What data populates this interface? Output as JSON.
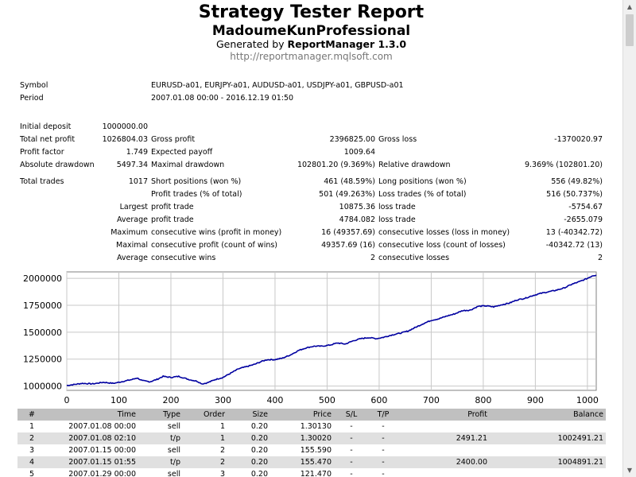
{
  "header": {
    "title": "Strategy Tester Report",
    "expert": "MadoumeKunProfessional",
    "generated_prefix": "Generated by ",
    "generator": "ReportManager 1.3.0",
    "url": "http://reportmanager.mqlsoft.com"
  },
  "info": {
    "symbol_label": "Symbol",
    "symbol_value": "EURUSD-a01, EURJPY-a01, AUDUSD-a01, USDJPY-a01, GBPUSD-a01",
    "period_label": "Period",
    "period_value": "2007.01.08 00:00 - 2016.12.19 01:50"
  },
  "stats": {
    "initial_deposit_label": "Initial deposit",
    "initial_deposit": "1000000.00",
    "total_net_profit_label": "Total net profit",
    "total_net_profit": "1026804.03",
    "gross_profit_label": "Gross profit",
    "gross_profit": "2396825.00",
    "gross_loss_label": "Gross loss",
    "gross_loss": "-1370020.97",
    "profit_factor_label": "Profit factor",
    "profit_factor": "1.749",
    "expected_payoff_label": "Expected payoff",
    "expected_payoff": "1009.64",
    "absolute_drawdown_label": "Absolute drawdown",
    "absolute_drawdown": "5497.34",
    "maximal_drawdown_label": "Maximal drawdown",
    "maximal_drawdown": "102801.20 (9.369%)",
    "relative_drawdown_label": "Relative drawdown",
    "relative_drawdown": "9.369% (102801.20)",
    "total_trades_label": "Total trades",
    "total_trades": "1017",
    "short_positions_label": "Short positions (won %)",
    "short_positions": "461 (48.59%)",
    "long_positions_label": "Long positions (won %)",
    "long_positions": "556 (49.82%)",
    "profit_trades_label": "Profit trades (% of total)",
    "profit_trades": "501 (49.263%)",
    "loss_trades_label": "Loss trades (% of total)",
    "loss_trades": "516 (50.737%)",
    "largest_label": "Largest",
    "largest_profit_label": "profit trade",
    "largest_profit": "10875.36",
    "largest_loss_label": "loss trade",
    "largest_loss": "-5754.67",
    "average_label": "Average",
    "average_profit_label": "profit trade",
    "average_profit": "4784.082",
    "average_loss_label": "loss trade",
    "average_loss": "-2655.079",
    "max_consec_label": "Maximum",
    "max_consec_wins_label": "consecutive wins (profit in money)",
    "max_consec_wins": "16 (49357.69)",
    "max_consec_losses_label": "consecutive losses (loss in money)",
    "max_consec_losses": "13 (-40342.72)",
    "maximal_consec_label": "Maximal",
    "maximal_consec_profit_label": "consecutive profit (count of wins)",
    "maximal_consec_profit": "49357.69 (16)",
    "maximal_consec_loss_label": "consecutive loss (count of losses)",
    "maximal_consec_loss": "-40342.72 (13)",
    "avg_consec_label": "Average",
    "avg_consec_wins_label": "consecutive wins",
    "avg_consec_wins": "2",
    "avg_consec_losses_label": "consecutive losses",
    "avg_consec_losses": "2"
  },
  "chart_data": {
    "type": "line",
    "xlim": [
      0,
      1017
    ],
    "ylim": [
      960000,
      2060000
    ],
    "xticks": [
      0,
      100,
      200,
      300,
      400,
      500,
      600,
      700,
      800,
      900,
      1000
    ],
    "yticks": [
      1000000,
      1250000,
      1500000,
      1750000,
      2000000
    ],
    "ytick_labels": [
      "1000000",
      "1250000",
      "1500000",
      "1750000",
      "2000000"
    ],
    "grid": true,
    "line_color": "#0000a0",
    "series": [
      {
        "x": [
          0,
          15,
          30,
          50,
          70,
          90,
          110,
          125,
          135,
          145,
          160,
          175,
          185,
          200,
          215,
          225,
          235,
          250,
          260,
          270,
          285,
          300,
          315,
          330,
          345,
          360,
          375,
          385,
          400,
          415,
          430,
          445,
          460,
          475,
          490,
          505,
          520,
          535,
          550,
          565,
          580,
          595,
          610,
          625,
          640,
          655,
          670,
          685,
          700,
          715,
          730,
          745,
          760,
          775,
          790,
          805,
          820,
          835,
          850,
          865,
          880,
          895,
          910,
          925,
          940,
          955,
          970,
          985,
          1000,
          1010,
          1017
        ],
        "y": [
          1005000,
          1015000,
          1025000,
          1020000,
          1035000,
          1025000,
          1045000,
          1060000,
          1075000,
          1050000,
          1040000,
          1065000,
          1090000,
          1080000,
          1090000,
          1075000,
          1060000,
          1045000,
          1020000,
          1030000,
          1060000,
          1080000,
          1120000,
          1160000,
          1180000,
          1200000,
          1230000,
          1245000,
          1245000,
          1260000,
          1290000,
          1330000,
          1355000,
          1370000,
          1370000,
          1380000,
          1400000,
          1390000,
          1420000,
          1440000,
          1450000,
          1440000,
          1455000,
          1475000,
          1490000,
          1510000,
          1545000,
          1580000,
          1610000,
          1625000,
          1650000,
          1670000,
          1700000,
          1705000,
          1740000,
          1745000,
          1735000,
          1755000,
          1770000,
          1800000,
          1815000,
          1840000,
          1860000,
          1875000,
          1890000,
          1910000,
          1945000,
          1970000,
          2000000,
          2025000,
          2030000
        ]
      }
    ]
  },
  "trades": {
    "headers": [
      "#",
      "Time",
      "Type",
      "Order",
      "Size",
      "Price",
      "S/L",
      "T/P",
      "Profit",
      "Balance"
    ],
    "rows": [
      [
        "1",
        "2007.01.08 00:00",
        "sell",
        "1",
        "0.20",
        "1.30130",
        "-",
        "-",
        "",
        ""
      ],
      [
        "2",
        "2007.01.08 02:10",
        "t/p",
        "1",
        "0.20",
        "1.30020",
        "-",
        "-",
        "2491.21",
        "1002491.21"
      ],
      [
        "3",
        "2007.01.15 00:00",
        "sell",
        "2",
        "0.20",
        "155.590",
        "-",
        "-",
        "",
        ""
      ],
      [
        "4",
        "2007.01.15 01:55",
        "t/p",
        "2",
        "0.20",
        "155.470",
        "-",
        "-",
        "2400.00",
        "1004891.21"
      ],
      [
        "5",
        "2007.01.29 00:00",
        "sell",
        "3",
        "0.20",
        "121.470",
        "-",
        "-",
        "",
        ""
      ]
    ]
  }
}
